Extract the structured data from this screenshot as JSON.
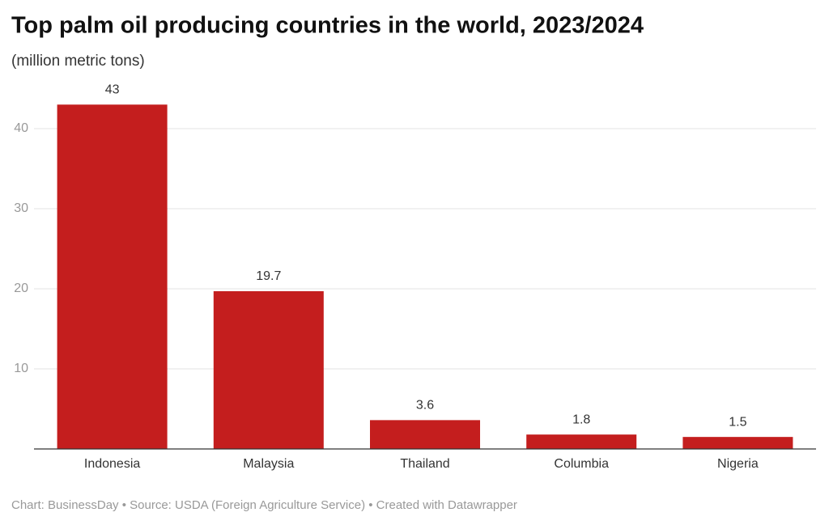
{
  "chart_data": {
    "type": "bar",
    "title": "Top palm oil producing countries in the world, 2023/2024",
    "subtitle": "(million metric tons)",
    "categories": [
      "Indonesia",
      "Malaysia",
      "Thailand",
      "Columbia",
      "Nigeria"
    ],
    "values": [
      43,
      19.7,
      3.6,
      1.8,
      1.5
    ],
    "color": "#c41e1e",
    "ylim": [
      0,
      45
    ],
    "yticks": [
      10,
      20,
      30,
      40
    ],
    "grid": true,
    "footer": "Chart: BusinessDay • Source: USDA (Foreign Agriculture Service) • Created with Datawrapper"
  }
}
